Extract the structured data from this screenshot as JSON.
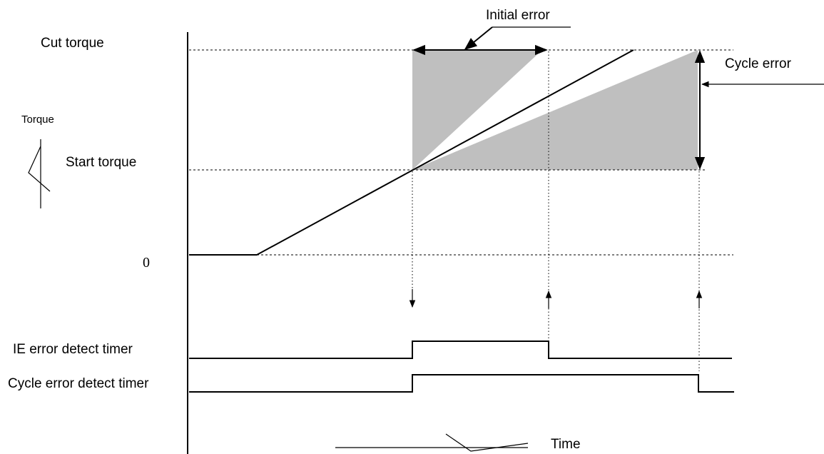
{
  "labels": {
    "cut_torque": "Cut torque",
    "start_torque": "Start torque",
    "torque_axis": "Torque",
    "zero": "0",
    "initial_error": "Initial error",
    "cycle_error": "Cycle error",
    "ie_timer": "IE error detect timer",
    "cycle_timer": "Cycle error detect timer",
    "time_axis": "Time"
  }
}
